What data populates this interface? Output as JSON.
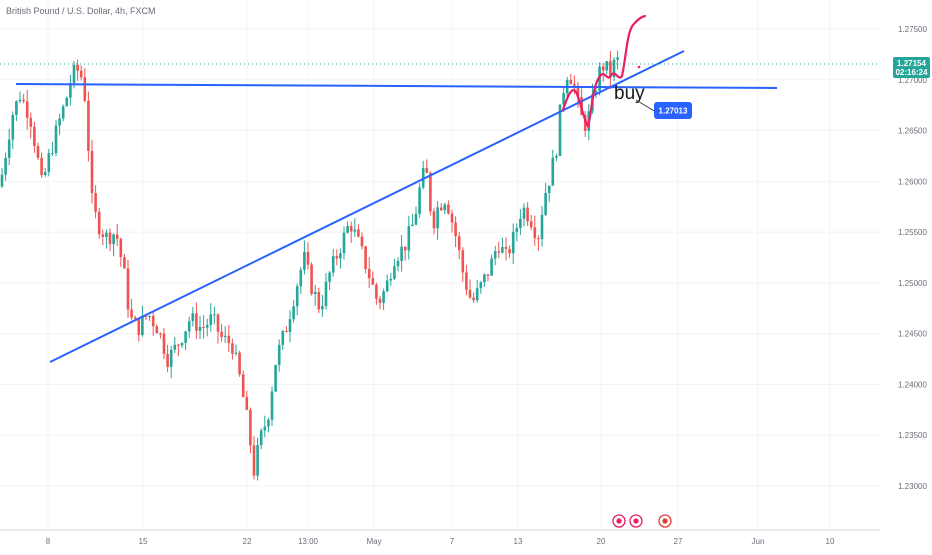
{
  "header": {
    "title": "British Pound / U.S. Dollar, 4h, FXCM"
  },
  "colors": {
    "up": "#26a69a",
    "down": "#ef5350",
    "trendline": "#2962ff",
    "drawing": "#e91e63",
    "tag": "#2962ff",
    "last_price": "#26a69a",
    "grid": "#f0f3fa"
  },
  "price_axis": {
    "ticks": [
      "1.27500",
      "1.27000",
      "1.26500",
      "1.26000",
      "1.25500",
      "1.25000",
      "1.24500",
      "1.24000",
      "1.23500",
      "1.23000"
    ],
    "ylim": [
      1.2275,
      1.2795
    ]
  },
  "time_axis": {
    "labels": [
      "8",
      "15",
      "22",
      "13:00",
      "May",
      "7",
      "13",
      "20",
      "27",
      "Jun",
      "10"
    ]
  },
  "last_price": {
    "value": "1.27154",
    "countdown": "02:16:24"
  },
  "annotations": {
    "buy_label": "buy",
    "price_tag": "1.27013"
  },
  "chart_data": {
    "type": "candlestick",
    "title": "British Pound / U.S. Dollar, 4h, FXCM",
    "ylim": [
      1.2275,
      1.2795
    ],
    "ticks": [
      1.275,
      1.27,
      1.265,
      1.26,
      1.255,
      1.25,
      1.245,
      1.24,
      1.235,
      1.23
    ],
    "x_labels": [
      "8",
      "15",
      "22",
      "13:00",
      "May",
      "7",
      "13",
      "20",
      "27",
      "Jun",
      "10"
    ],
    "path": [
      [
        0,
        1.2595
      ],
      [
        12,
        1.2665
      ],
      [
        20,
        1.2685
      ],
      [
        30,
        1.2665
      ],
      [
        38,
        1.262
      ],
      [
        42,
        1.2595
      ],
      [
        48,
        1.262
      ],
      [
        58,
        1.2655
      ],
      [
        66,
        1.268
      ],
      [
        72,
        1.2705
      ],
      [
        79,
        1.271
      ],
      [
        84,
        1.2695
      ],
      [
        88,
        1.264
      ],
      [
        92,
        1.258
      ],
      [
        97,
        1.256
      ],
      [
        106,
        1.2545
      ],
      [
        116,
        1.255
      ],
      [
        124,
        1.251
      ],
      [
        130,
        1.2465
      ],
      [
        138,
        1.2455
      ],
      [
        148,
        1.247
      ],
      [
        158,
        1.2455
      ],
      [
        168,
        1.2425
      ],
      [
        178,
        1.244
      ],
      [
        190,
        1.2465
      ],
      [
        202,
        1.2455
      ],
      [
        212,
        1.2465
      ],
      [
        222,
        1.2445
      ],
      [
        232,
        1.244
      ],
      [
        240,
        1.2405
      ],
      [
        248,
        1.236
      ],
      [
        254,
        1.2315
      ],
      [
        260,
        1.2345
      ],
      [
        268,
        1.237
      ],
      [
        276,
        1.2425
      ],
      [
        286,
        1.2455
      ],
      [
        296,
        1.2495
      ],
      [
        304,
        1.2525
      ],
      [
        312,
        1.2495
      ],
      [
        320,
        1.2475
      ],
      [
        330,
        1.251
      ],
      [
        340,
        1.2535
      ],
      [
        350,
        1.256
      ],
      [
        360,
        1.2535
      ],
      [
        370,
        1.2505
      ],
      [
        378,
        1.248
      ],
      [
        386,
        1.2495
      ],
      [
        394,
        1.2525
      ],
      [
        404,
        1.2535
      ],
      [
        414,
        1.256
      ],
      [
        422,
        1.2605
      ],
      [
        428,
        1.2605
      ],
      [
        432,
        1.2555
      ],
      [
        438,
        1.2575
      ],
      [
        446,
        1.2585
      ],
      [
        456,
        1.2545
      ],
      [
        464,
        1.2505
      ],
      [
        472,
        1.248
      ],
      [
        480,
        1.2495
      ],
      [
        490,
        1.2515
      ],
      [
        498,
        1.254
      ],
      [
        506,
        1.2525
      ],
      [
        514,
        1.2545
      ],
      [
        522,
        1.2575
      ],
      [
        530,
        1.2565
      ],
      [
        538,
        1.2545
      ],
      [
        544,
        1.2585
      ],
      [
        550,
        1.2605
      ],
      [
        556,
        1.263
      ],
      [
        562,
        1.2685
      ],
      [
        568,
        1.271
      ],
      [
        574,
        1.2695
      ],
      [
        580,
        1.2665
      ],
      [
        586,
        1.2655
      ],
      [
        592,
        1.2675
      ],
      [
        598,
        1.2705
      ],
      [
        604,
        1.2715
      ],
      [
        610,
        1.2705
      ],
      [
        616,
        1.272
      ],
      [
        621,
        1.2715
      ]
    ],
    "annotations": [
      "buy",
      "1.27013"
    ]
  }
}
